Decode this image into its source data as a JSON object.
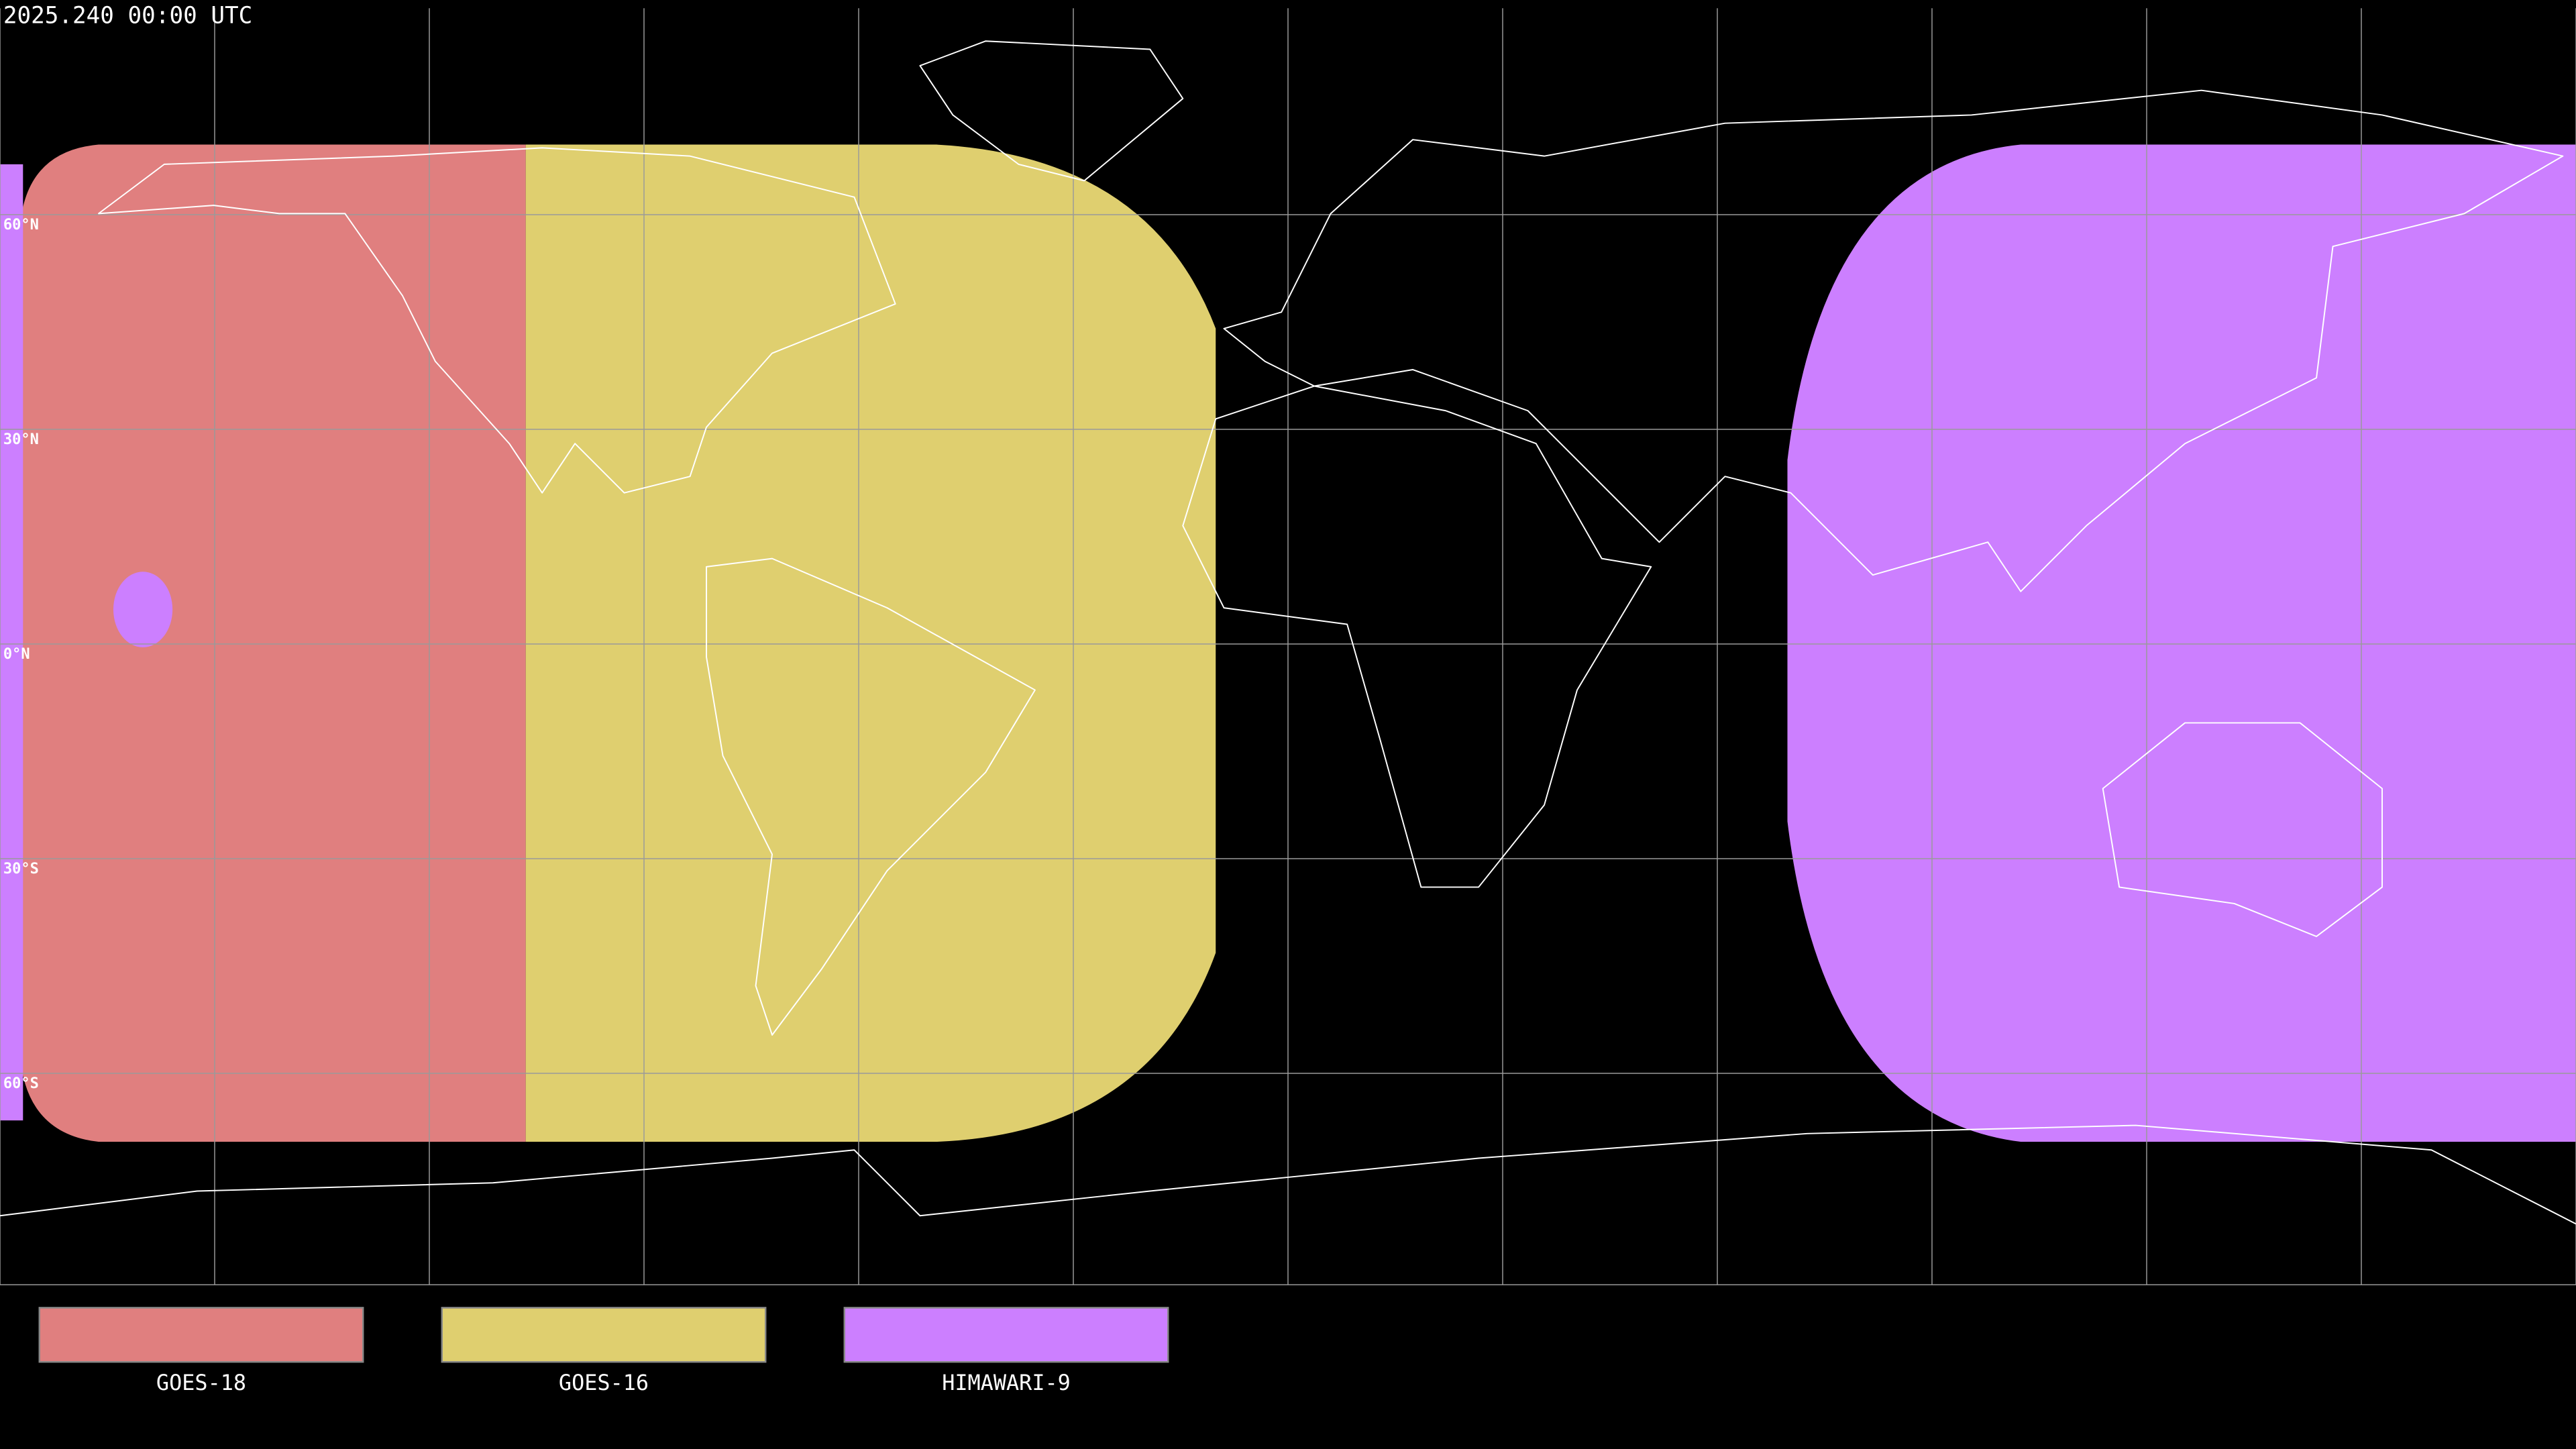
{
  "timestamp": "2025.240 00:00 UTC",
  "latitude_labels": [
    "60°N",
    "30°N",
    "0°N",
    "30°S",
    "60°S"
  ],
  "legend": [
    {
      "label": "GOES-18",
      "color": "#e07f7f"
    },
    {
      "label": "GOES-16",
      "color": "#dfcf6f"
    },
    {
      "label": "HIMAWARI-9",
      "color": "#cc7fff"
    }
  ]
}
